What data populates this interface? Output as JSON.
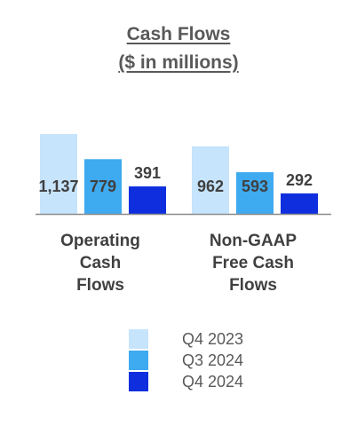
{
  "chart_data": {
    "type": "bar",
    "title": "Cash Flows",
    "subtitle": "($ in millions)",
    "categories": [
      "Operating Cash Flows",
      "Non-GAAP Free Cash Flows"
    ],
    "category_lines": [
      [
        "Operating",
        "Cash",
        "Flows"
      ],
      [
        "Non-GAAP",
        "Free Cash",
        "Flows"
      ]
    ],
    "series": [
      {
        "name": "Q4 2023",
        "color": "#c6e4fb",
        "values": [
          1137,
          962
        ],
        "labels": [
          "1,137",
          "962"
        ]
      },
      {
        "name": "Q3 2024",
        "color": "#3eaaf0",
        "values": [
          779,
          593
        ],
        "labels": [
          "779",
          "593"
        ]
      },
      {
        "name": "Q4 2024",
        "color": "#0f2fdf",
        "values": [
          391,
          292
        ],
        "labels": [
          "391",
          "292"
        ]
      }
    ],
    "ylim": [
      0,
      1200
    ],
    "grid": false,
    "legend_position": "bottom"
  }
}
